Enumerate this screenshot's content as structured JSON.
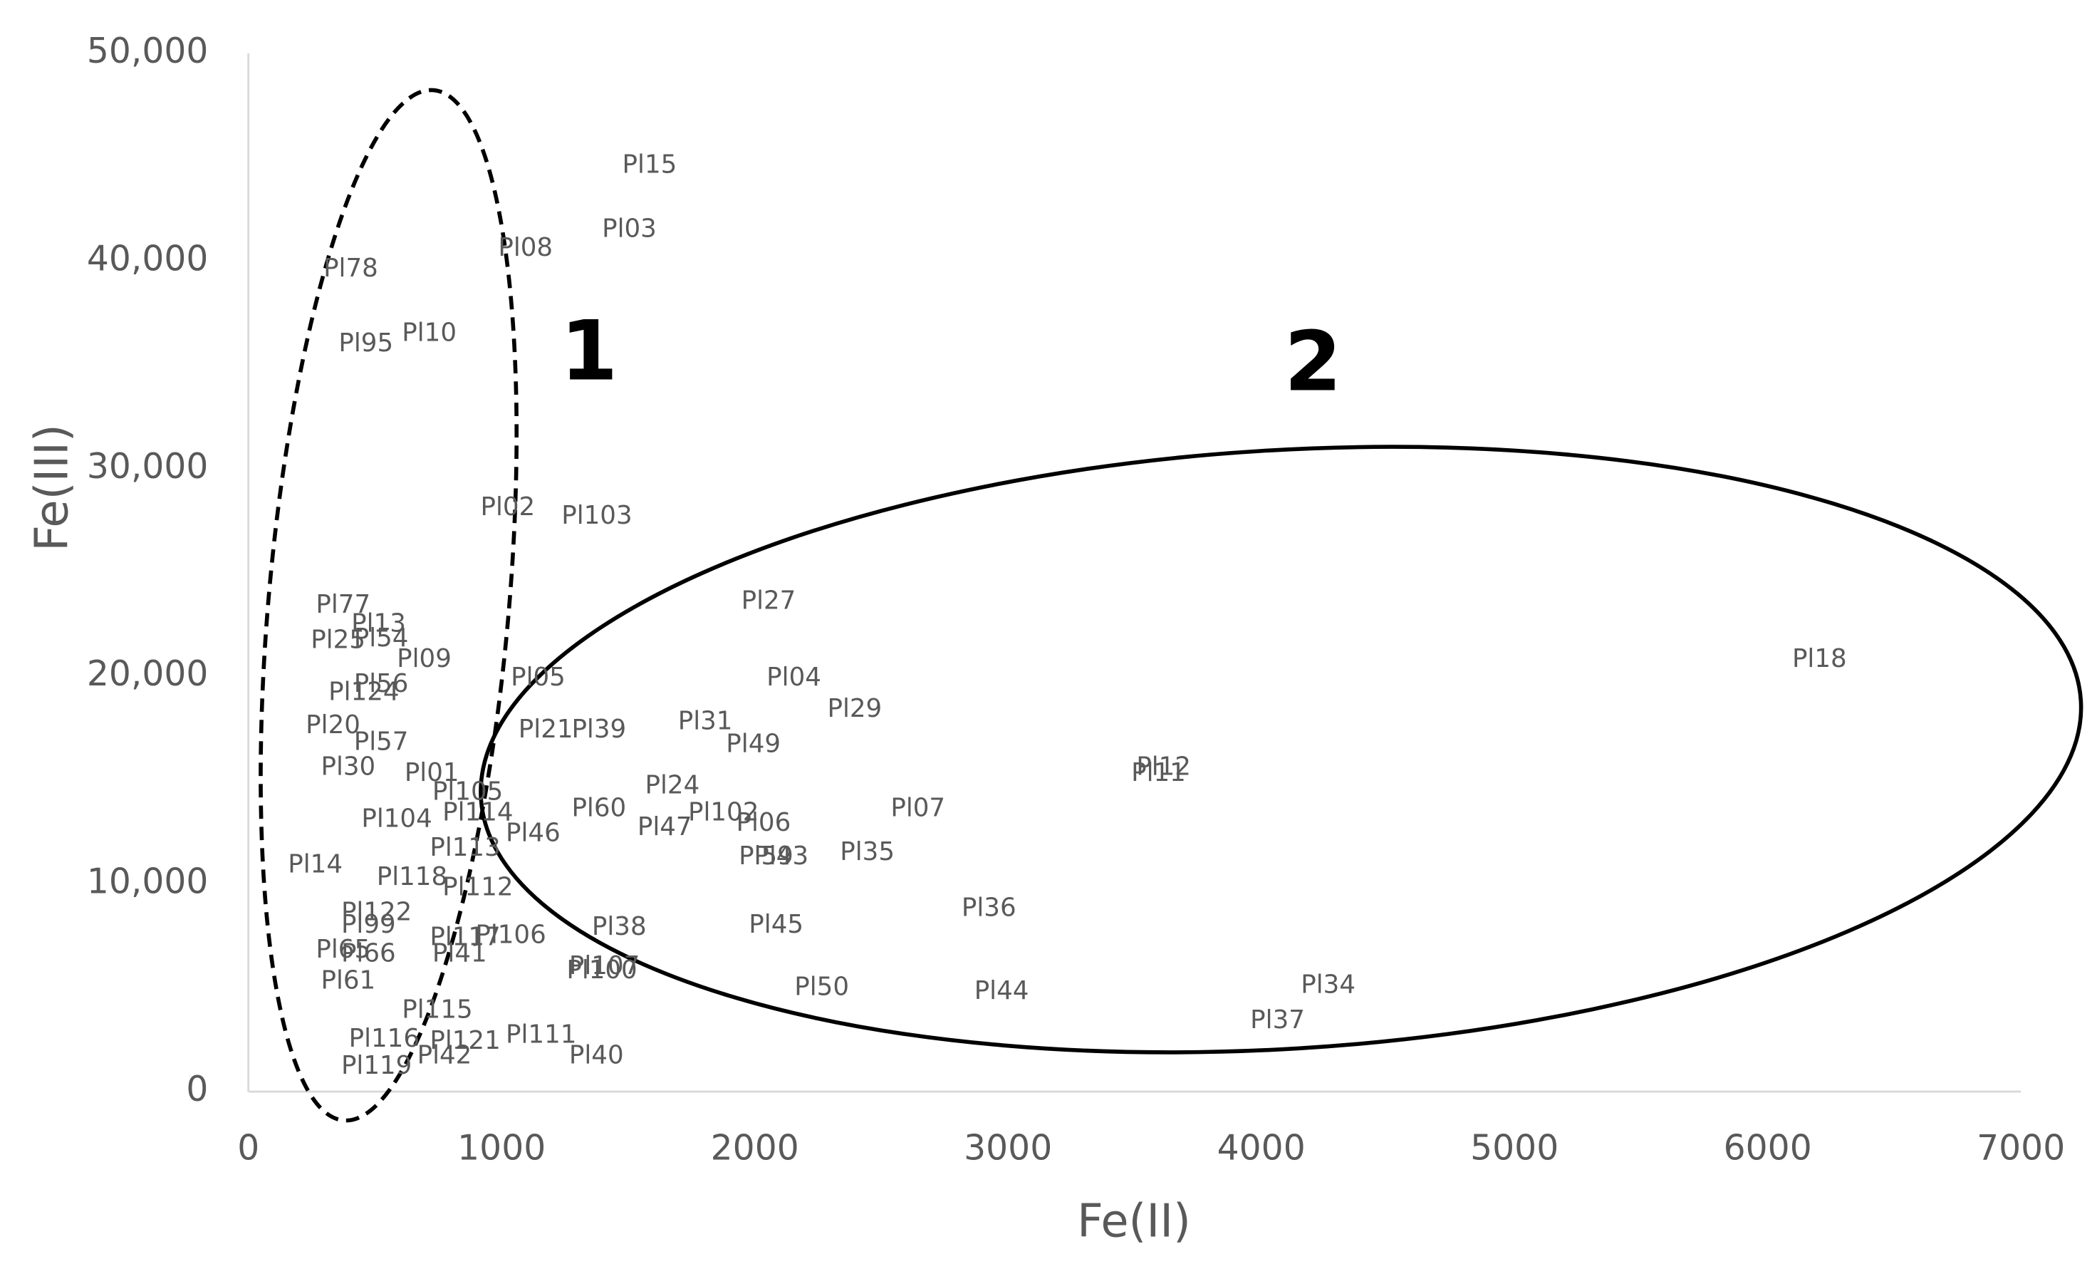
{
  "chart_data": {
    "type": "scatter",
    "x_label": "Fe(II)",
    "y_label": "Fe(III)",
    "annotations": [
      "1",
      "2"
    ],
    "xlim": [
      0,
      7000
    ],
    "xticks": [
      0,
      1000,
      2000,
      3000,
      4000,
      5000,
      6000,
      7000
    ],
    "ylim": [
      0,
      50000
    ],
    "yticks": [
      0,
      {
        "value": 10000,
        "label": "10,000"
      },
      {
        "value": 20000,
        "label": "20,000"
      },
      {
        "value": 30000,
        "label": "30,000"
      },
      {
        "value": 40000,
        "label": "40,000"
      },
      {
        "value": 50000,
        "label": "50,000"
      }
    ],
    "color": "#595959",
    "point_labels": [
      "Pl15",
      "Pl03",
      "Pl08",
      "Pl78",
      "Pl95",
      "Pl10",
      "Pl02",
      "Pl103",
      "Pl77",
      "Pl13",
      "Pl54",
      "Pl25",
      "Pl09",
      "Pl05",
      "Pl124",
      "Pl56",
      "Pl21",
      "Pl39",
      "Pl20",
      "Pl27",
      "Pl04",
      "Pl29",
      "Pl31",
      "Pl49",
      "Pl18",
      "Pl12",
      "Pl11",
      "Pl24",
      "Pl07",
      "Pl60",
      "Pl102",
      "Pl06",
      "Pl47",
      "Pl46",
      "Pl43",
      "Pl59",
      "Pl35",
      "Pl01",
      "Pl105",
      "Pl114",
      "Pl104",
      "Pl113",
      "Pl112",
      "Pl118",
      "Pl30",
      "Pl14",
      "Pl117",
      "Pl106",
      "Pl41",
      "Pl38",
      "Pl45",
      "Pl36",
      "Pl107",
      "Pl100",
      "Pl50",
      "Pl44",
      "Pl34",
      "Pl37",
      "Pl115",
      "Pl121",
      "Pl111",
      "Pl42",
      "Pl40",
      "Pl119",
      "Pl116",
      "Pl122",
      "Pl99",
      "Pl66",
      "Pl61",
      "Pl65",
      "Pl57"
    ],
    "x": [
      1450,
      1370,
      960,
      270,
      330,
      580,
      890,
      1210,
      240,
      380,
      390,
      220,
      560,
      1010,
      290,
      390,
      1040,
      1250,
      200,
      1920,
      2020,
      2260,
      1670,
      1860,
      6070,
      3480,
      3460,
      1540,
      2510,
      1250,
      1710,
      1900,
      1510,
      990,
      1970,
      1910,
      2310,
      590,
      700,
      740,
      420,
      690,
      740,
      480,
      260,
      130,
      690,
      870,
      700,
      1330,
      1950,
      2790,
      1240,
      1230,
      2130,
      2840,
      4130,
      3930,
      580,
      690,
      990,
      640,
      1240,
      340,
      370,
      340,
      340,
      340,
      260,
      240,
      390
    ],
    "values": [
      44600,
      41500,
      40600,
      39600,
      36000,
      36500,
      28100,
      27700,
      23400,
      22500,
      21800,
      21700,
      20800,
      19900,
      19200,
      19600,
      17400,
      17400,
      17600,
      23600,
      19900,
      18400,
      17800,
      16700,
      20800,
      15600,
      15300,
      14700,
      13600,
      13600,
      13400,
      12900,
      12700,
      12400,
      11300,
      11300,
      11500,
      15300,
      14400,
      13400,
      13100,
      11700,
      9800,
      10300,
      15600,
      10900,
      7400,
      7500,
      6600,
      7900,
      8000,
      8800,
      6000,
      5800,
      5000,
      4800,
      5100,
      3400,
      3900,
      2400,
      2700,
      1700,
      1700,
      1200,
      2500,
      8600,
      8000,
      6600,
      5300,
      6800,
      16800
    ]
  }
}
